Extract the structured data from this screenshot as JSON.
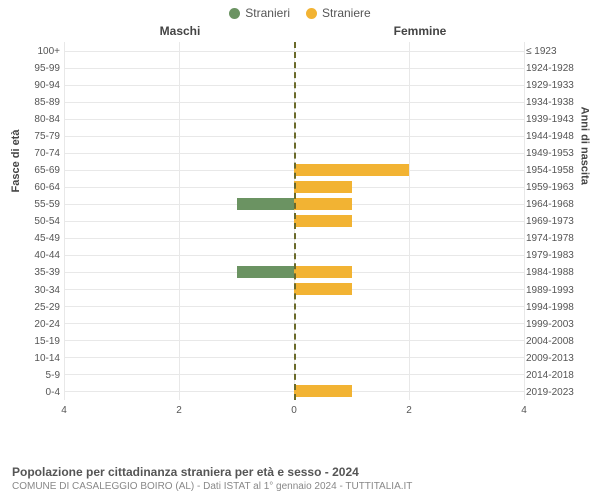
{
  "legend": {
    "male": {
      "label": "Stranieri",
      "color": "#6b9362"
    },
    "female": {
      "label": "Straniere",
      "color": "#f2b333"
    }
  },
  "headers": {
    "left": "Maschi",
    "right": "Femmine"
  },
  "axis_labels": {
    "left": "Fasce di età",
    "right": "Anni di nascita"
  },
  "chart": {
    "type": "bar",
    "xmax": 4,
    "xticks": [
      0,
      2,
      4
    ],
    "grid_color": "#e8e8e8",
    "mid_color": "#6a6a2a",
    "bg": "#ffffff",
    "rows": [
      {
        "age": "100+",
        "birth": "≤ 1923",
        "m": 0,
        "f": 0
      },
      {
        "age": "95-99",
        "birth": "1924-1928",
        "m": 0,
        "f": 0
      },
      {
        "age": "90-94",
        "birth": "1929-1933",
        "m": 0,
        "f": 0
      },
      {
        "age": "85-89",
        "birth": "1934-1938",
        "m": 0,
        "f": 0
      },
      {
        "age": "80-84",
        "birth": "1939-1943",
        "m": 0,
        "f": 0
      },
      {
        "age": "75-79",
        "birth": "1944-1948",
        "m": 0,
        "f": 0
      },
      {
        "age": "70-74",
        "birth": "1949-1953",
        "m": 0,
        "f": 0
      },
      {
        "age": "65-69",
        "birth": "1954-1958",
        "m": 0,
        "f": 2
      },
      {
        "age": "60-64",
        "birth": "1959-1963",
        "m": 0,
        "f": 1
      },
      {
        "age": "55-59",
        "birth": "1964-1968",
        "m": 1,
        "f": 1
      },
      {
        "age": "50-54",
        "birth": "1969-1973",
        "m": 0,
        "f": 1
      },
      {
        "age": "45-49",
        "birth": "1974-1978",
        "m": 0,
        "f": 0
      },
      {
        "age": "40-44",
        "birth": "1979-1983",
        "m": 0,
        "f": 0
      },
      {
        "age": "35-39",
        "birth": "1984-1988",
        "m": 1,
        "f": 1
      },
      {
        "age": "30-34",
        "birth": "1989-1993",
        "m": 0,
        "f": 1
      },
      {
        "age": "25-29",
        "birth": "1994-1998",
        "m": 0,
        "f": 0
      },
      {
        "age": "20-24",
        "birth": "1999-2003",
        "m": 0,
        "f": 0
      },
      {
        "age": "15-19",
        "birth": "2004-2008",
        "m": 0,
        "f": 0
      },
      {
        "age": "10-14",
        "birth": "2009-2013",
        "m": 0,
        "f": 0
      },
      {
        "age": "5-9",
        "birth": "2014-2018",
        "m": 0,
        "f": 0
      },
      {
        "age": "0-4",
        "birth": "2019-2023",
        "m": 0,
        "f": 1
      }
    ]
  },
  "caption": {
    "title": "Popolazione per cittadinanza straniera per età e sesso - 2024",
    "sub": "COMUNE DI CASALEGGIO BOIRO (AL) - Dati ISTAT al 1° gennaio 2024 - TUTTITALIA.IT"
  }
}
